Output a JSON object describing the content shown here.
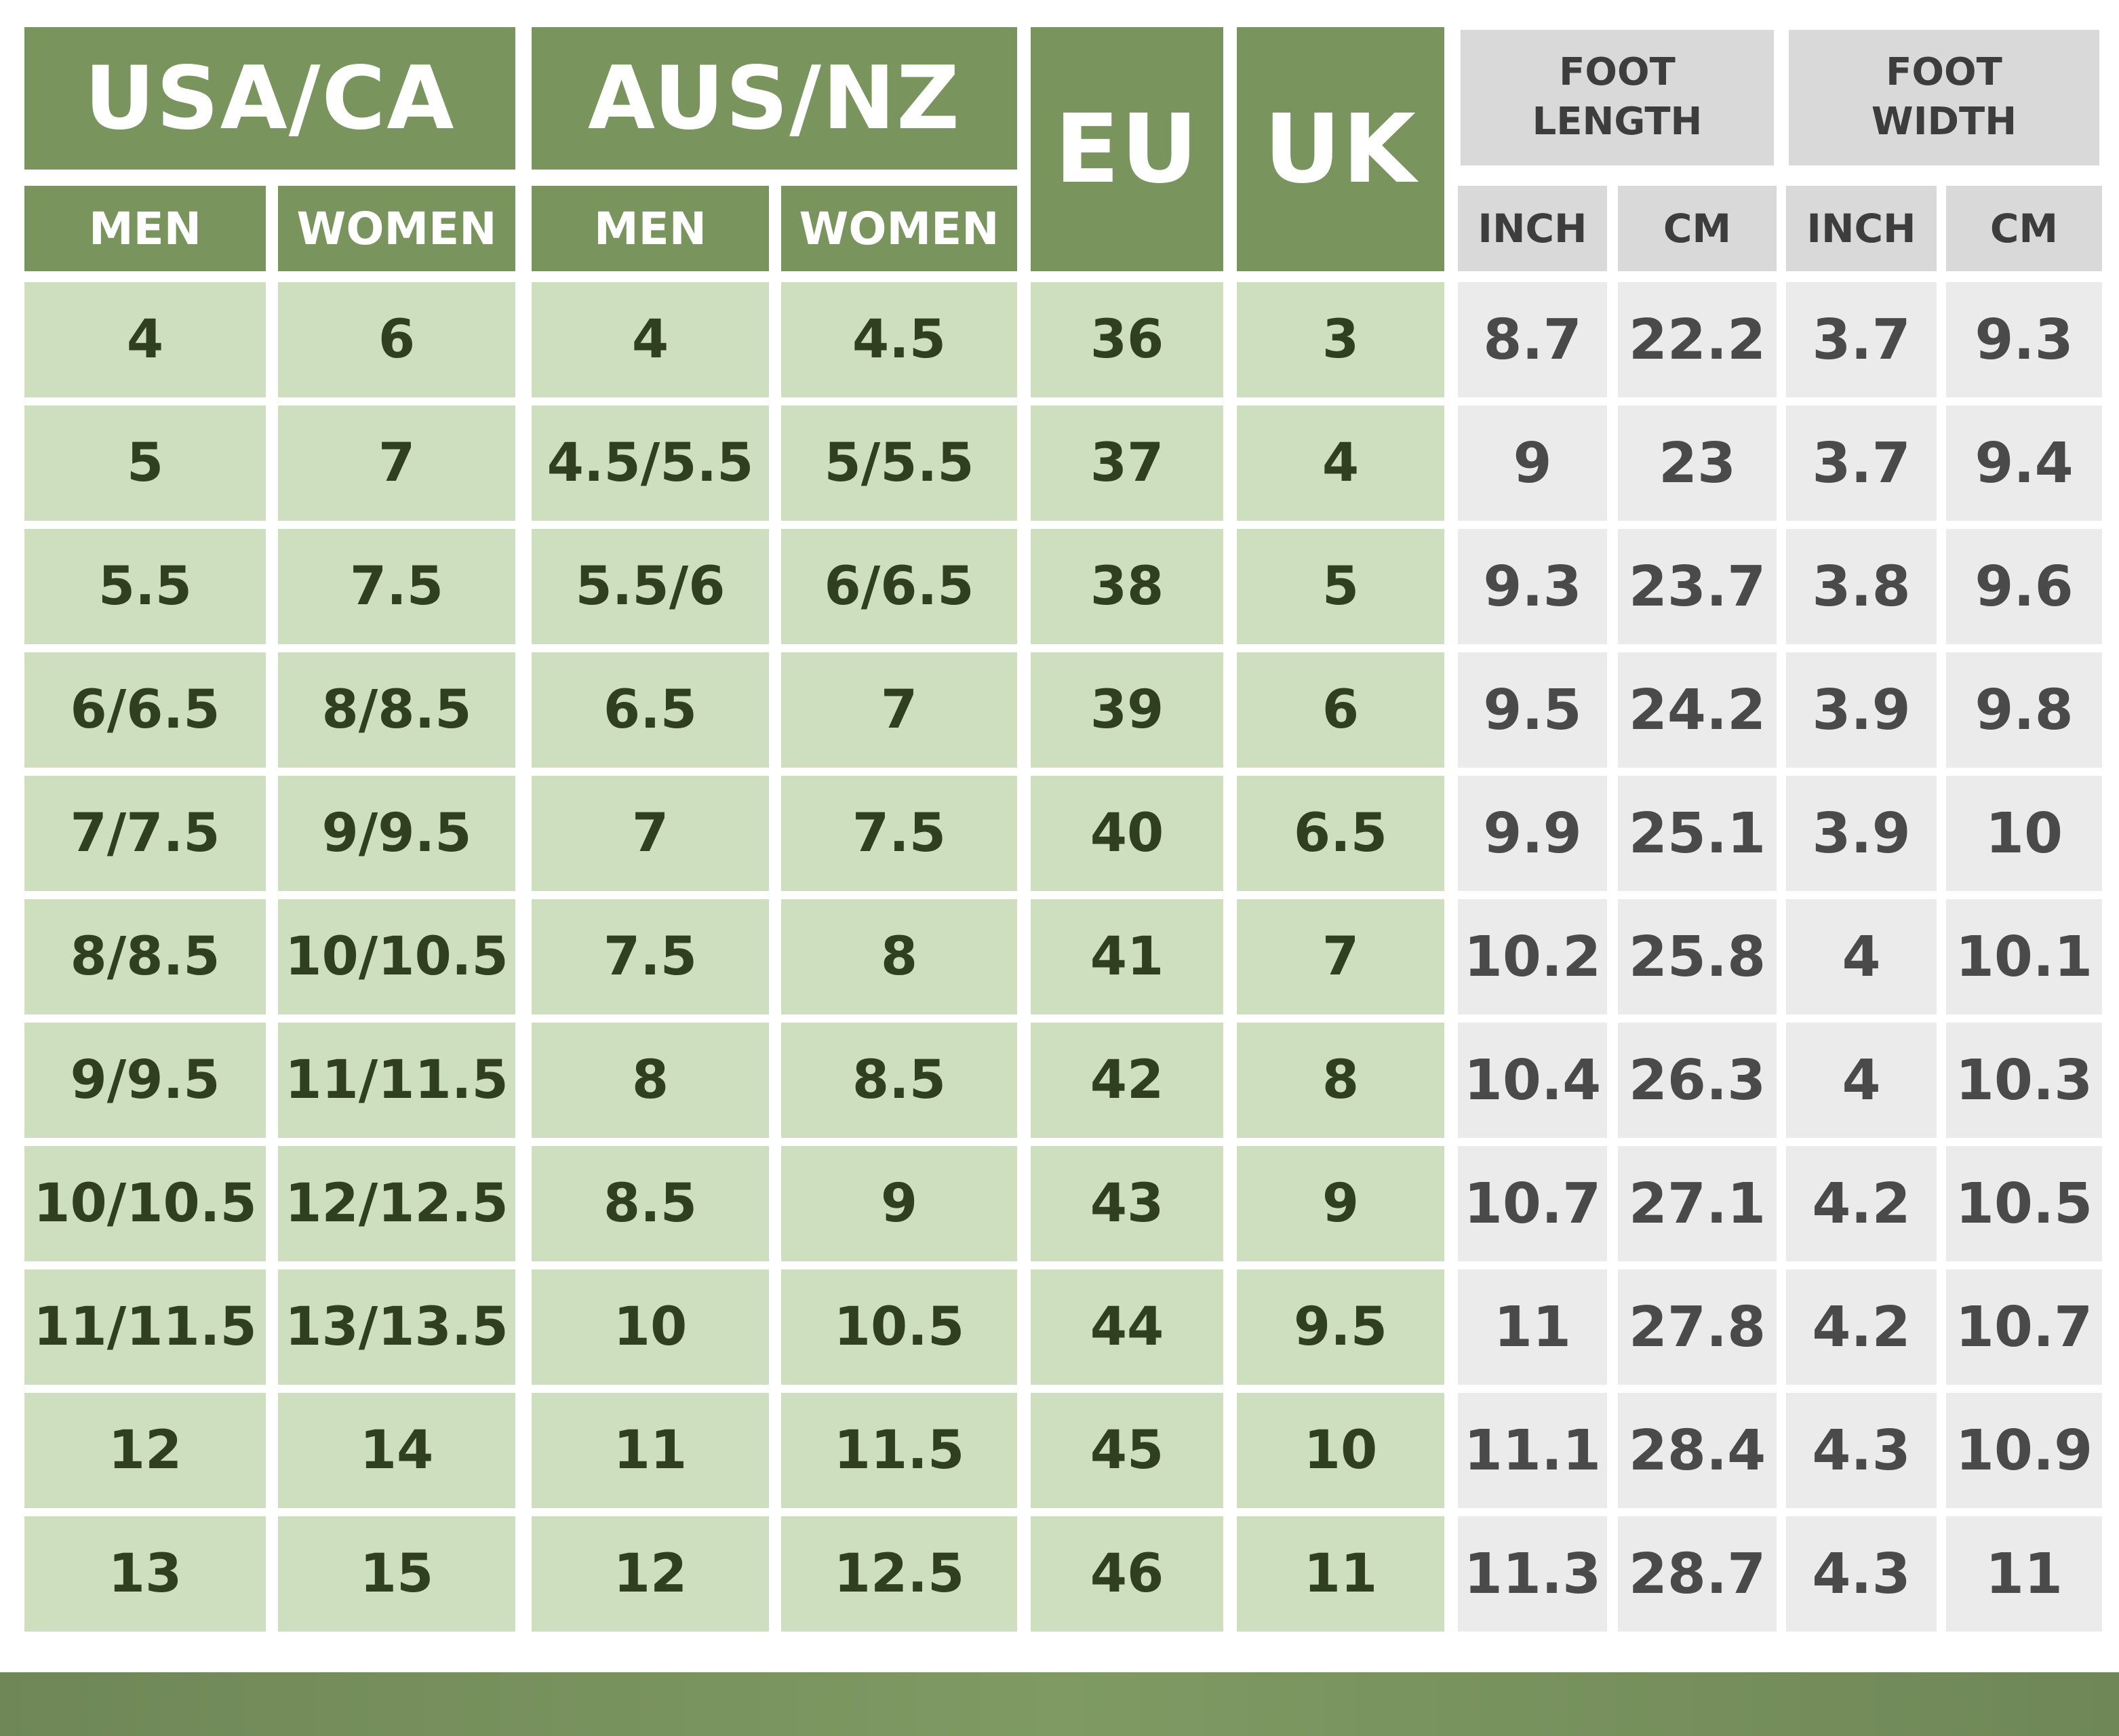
{
  "table": {
    "groups": [
      {
        "label": "USA/CA",
        "columns": [
          "MEN",
          "WOMEN"
        ]
      },
      {
        "label": "AUS/NZ",
        "columns": [
          "MEN",
          "WOMEN"
        ]
      },
      {
        "label": "EU"
      },
      {
        "label": "UK"
      },
      {
        "label": "FOOT LENGTH",
        "columns": [
          "INCH",
          "CM"
        ]
      },
      {
        "label": "FOOT WIDTH",
        "columns": [
          "INCH",
          "CM"
        ]
      }
    ],
    "rows": [
      [
        "4",
        "6",
        "4",
        "4.5",
        "36",
        "3",
        "8.7",
        "22.2",
        "3.7",
        "9.3"
      ],
      [
        "5",
        "7",
        "4.5/5.5",
        "5/5.5",
        "37",
        "4",
        "9",
        "23",
        "3.7",
        "9.4"
      ],
      [
        "5.5",
        "7.5",
        "5.5/6",
        "6/6.5",
        "38",
        "5",
        "9.3",
        "23.7",
        "3.8",
        "9.6"
      ],
      [
        "6/6.5",
        "8/8.5",
        "6.5",
        "7",
        "39",
        "6",
        "9.5",
        "24.2",
        "3.9",
        "9.8"
      ],
      [
        "7/7.5",
        "9/9.5",
        "7",
        "7.5",
        "40",
        "6.5",
        "9.9",
        "25.1",
        "3.9",
        "10"
      ],
      [
        "8/8.5",
        "10/10.5",
        "7.5",
        "8",
        "41",
        "7",
        "10.2",
        "25.8",
        "4",
        "10.1"
      ],
      [
        "9/9.5",
        "11/11.5",
        "8",
        "8.5",
        "42",
        "8",
        "10.4",
        "26.3",
        "4",
        "10.3"
      ],
      [
        "10/10.5",
        "12/12.5",
        "8.5",
        "9",
        "43",
        "9",
        "10.7",
        "27.1",
        "4.2",
        "10.5"
      ],
      [
        "11/11.5",
        "13/13.5",
        "10",
        "10.5",
        "44",
        "9.5",
        "11",
        "27.8",
        "4.2",
        "10.7"
      ],
      [
        "12",
        "14",
        "11",
        "11.5",
        "45",
        "10",
        "11.1",
        "28.4",
        "4.3",
        "10.9"
      ],
      [
        "13",
        "15",
        "12",
        "12.5",
        "46",
        "11",
        "11.3",
        "28.7",
        "4.3",
        "11"
      ]
    ]
  }
}
